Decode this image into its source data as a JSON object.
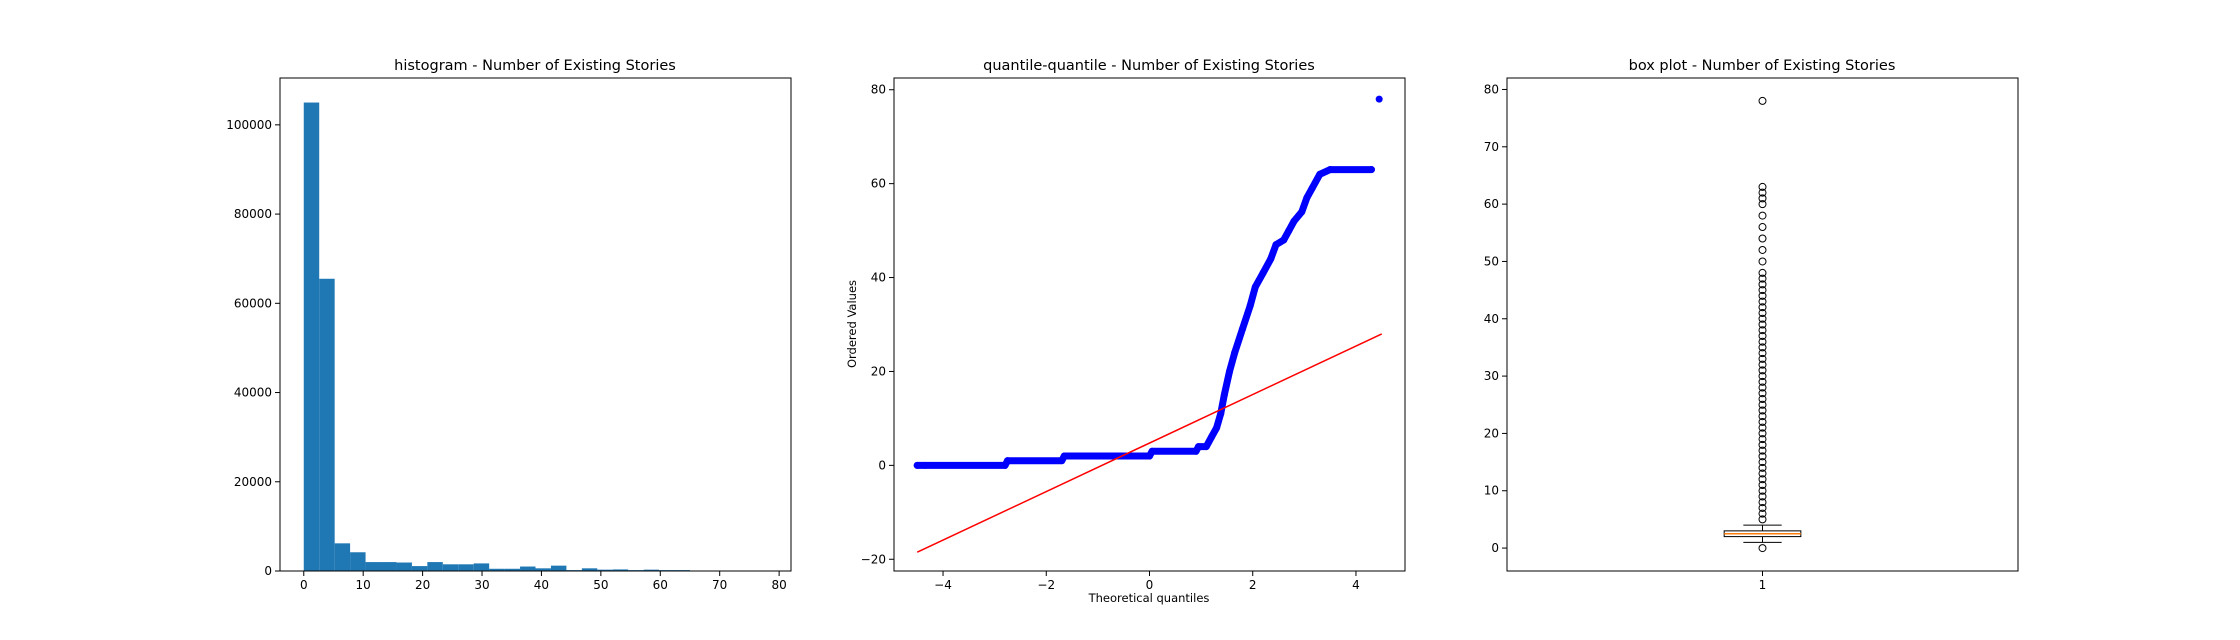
{
  "chart_data": [
    {
      "type": "bar",
      "title": "histogram - Number of Existing Stories",
      "xlabel": "",
      "ylabel": "",
      "xlim": [
        -4,
        82
      ],
      "ylim": [
        0,
        110500
      ],
      "xticks": [
        0,
        10,
        20,
        30,
        40,
        50,
        60,
        70,
        80
      ],
      "yticks": [
        0,
        20000,
        40000,
        60000,
        80000,
        100000
      ],
      "bin_width": 2.6,
      "bin_start": 0,
      "values": [
        105000,
        65500,
        6200,
        4200,
        2000,
        2000,
        1900,
        1100,
        2000,
        1500,
        1500,
        1700,
        500,
        500,
        1000,
        600,
        1200,
        200,
        600,
        300,
        350,
        200,
        300,
        200,
        200,
        50,
        30,
        20,
        10,
        3
      ],
      "color": "#1f77b4"
    },
    {
      "type": "scatter",
      "title": "quantile-quantile - Number of Existing Stories",
      "xlabel": "Theoretical quantiles",
      "ylabel": "Ordered Values",
      "xlim": [
        -4.95,
        4.95
      ],
      "ylim": [
        -22.5,
        82.5
      ],
      "xticks": [
        -4,
        -2,
        0,
        2,
        4
      ],
      "yticks": [
        -20,
        0,
        20,
        40,
        60,
        80
      ],
      "points_color": "#0000ff",
      "line_color": "#ff0000",
      "quantile_curve": [
        [
          -4.5,
          0
        ],
        [
          -4.35,
          0
        ],
        [
          -2.8,
          0
        ],
        [
          -2.75,
          1
        ],
        [
          -1.7,
          1
        ],
        [
          -1.65,
          2
        ],
        [
          0,
          2
        ],
        [
          0.05,
          3
        ],
        [
          0.9,
          3
        ],
        [
          0.95,
          4
        ],
        [
          1.1,
          4
        ],
        [
          1.2,
          6
        ],
        [
          1.3,
          8
        ],
        [
          1.38,
          11
        ],
        [
          1.45,
          15
        ],
        [
          1.55,
          20
        ],
        [
          1.65,
          24
        ],
        [
          1.8,
          29
        ],
        [
          1.95,
          34
        ],
        [
          2.05,
          38
        ],
        [
          2.2,
          41
        ],
        [
          2.35,
          44
        ],
        [
          2.45,
          47
        ],
        [
          2.6,
          48
        ],
        [
          2.7,
          50
        ],
        [
          2.8,
          52
        ],
        [
          2.95,
          54
        ],
        [
          3.05,
          57
        ],
        [
          3.15,
          59
        ],
        [
          3.3,
          62
        ],
        [
          3.5,
          63
        ],
        [
          4.3,
          63
        ]
      ],
      "outlier": [
        4.45,
        78
      ],
      "fit_line": {
        "x": [
          -4.5,
          4.5
        ],
        "y": [
          -18.5,
          28
        ]
      }
    },
    {
      "type": "box",
      "title": "box plot - Number of Existing Stories",
      "xlabel": "",
      "ylabel": "",
      "xlim": [
        0.5,
        1.5
      ],
      "ylim": [
        -4,
        82
      ],
      "xticks": [
        1
      ],
      "yticks": [
        0,
        10,
        20,
        30,
        40,
        50,
        60,
        70,
        80
      ],
      "q1": 2,
      "median": 2.5,
      "q3": 3,
      "whisker_low": 1,
      "whisker_high": 4,
      "median_color": "#ff7f0e",
      "fliers": [
        0,
        5,
        6,
        7,
        8,
        9,
        10,
        11,
        12,
        13,
        14,
        15,
        16,
        17,
        18,
        19,
        20,
        21,
        22,
        23,
        24,
        25,
        26,
        27,
        28,
        29,
        30,
        31,
        32,
        33,
        34,
        35,
        36,
        37,
        38,
        39,
        40,
        41,
        42,
        43,
        44,
        45,
        46,
        47,
        48,
        50,
        52,
        54,
        56,
        58,
        60,
        61,
        62,
        63,
        78
      ]
    }
  ]
}
